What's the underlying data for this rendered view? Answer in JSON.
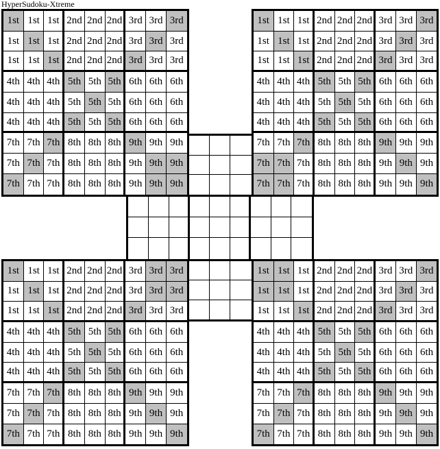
{
  "title": "HyperSudoku-Xtreme",
  "box_labels": [
    "1st",
    "2nd",
    "3rd",
    "4th",
    "5th",
    "6th",
    "7th",
    "8th",
    "9th"
  ],
  "colors": {
    "shaded_cell": "#c0c0c0",
    "grid_line": "#000000",
    "background": "#ffffff",
    "text": "#000000"
  },
  "grids": {
    "top_left": {
      "shaded_cells": [
        [
          1,
          1
        ],
        [
          1,
          9
        ],
        [
          2,
          2
        ],
        [
          2,
          8
        ],
        [
          3,
          3
        ],
        [
          3,
          7
        ],
        [
          4,
          4
        ],
        [
          4,
          6
        ],
        [
          5,
          5
        ],
        [
          6,
          4
        ],
        [
          6,
          6
        ],
        [
          7,
          3
        ],
        [
          7,
          7
        ],
        [
          8,
          2
        ],
        [
          8,
          8
        ],
        [
          8,
          9
        ],
        [
          9,
          1
        ],
        [
          9,
          8
        ],
        [
          9,
          9
        ]
      ]
    },
    "top_right": {
      "shaded_cells": [
        [
          1,
          1
        ],
        [
          1,
          9
        ],
        [
          2,
          2
        ],
        [
          2,
          8
        ],
        [
          3,
          3
        ],
        [
          3,
          7
        ],
        [
          4,
          4
        ],
        [
          4,
          6
        ],
        [
          5,
          5
        ],
        [
          6,
          4
        ],
        [
          6,
          6
        ],
        [
          7,
          3
        ],
        [
          7,
          7
        ],
        [
          8,
          1
        ],
        [
          8,
          2
        ],
        [
          8,
          8
        ],
        [
          9,
          1
        ],
        [
          9,
          2
        ],
        [
          9,
          9
        ]
      ]
    },
    "bottom_left": {
      "shaded_cells": [
        [
          1,
          1
        ],
        [
          1,
          8
        ],
        [
          1,
          9
        ],
        [
          2,
          2
        ],
        [
          2,
          8
        ],
        [
          2,
          9
        ],
        [
          3,
          3
        ],
        [
          3,
          7
        ],
        [
          4,
          4
        ],
        [
          4,
          6
        ],
        [
          5,
          5
        ],
        [
          6,
          4
        ],
        [
          6,
          6
        ],
        [
          7,
          3
        ],
        [
          7,
          7
        ],
        [
          8,
          2
        ],
        [
          8,
          8
        ],
        [
          9,
          1
        ],
        [
          9,
          9
        ]
      ]
    },
    "bottom_right": {
      "shaded_cells": [
        [
          1,
          1
        ],
        [
          1,
          2
        ],
        [
          1,
          9
        ],
        [
          2,
          1
        ],
        [
          2,
          2
        ],
        [
          2,
          8
        ],
        [
          3,
          3
        ],
        [
          3,
          7
        ],
        [
          4,
          4
        ],
        [
          4,
          6
        ],
        [
          5,
          5
        ],
        [
          6,
          4
        ],
        [
          6,
          6
        ],
        [
          7,
          3
        ],
        [
          7,
          7
        ],
        [
          8,
          2
        ],
        [
          8,
          8
        ],
        [
          9,
          1
        ],
        [
          9,
          9
        ]
      ]
    }
  },
  "central_grid": {
    "boxes": [
      "top-middle",
      "middle-band",
      "bottom-middle"
    ],
    "cell_text": ""
  }
}
